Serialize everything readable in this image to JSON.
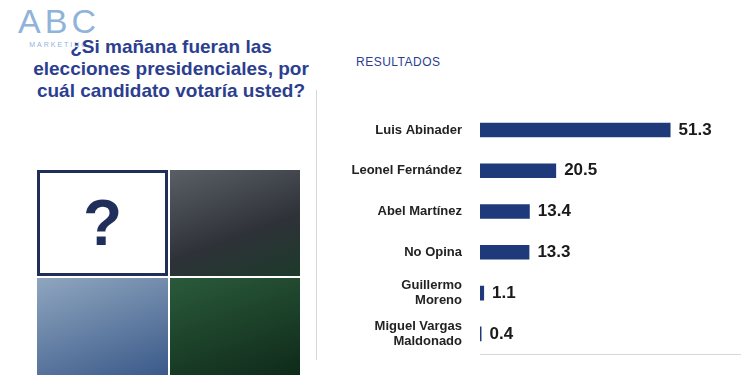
{
  "header": {
    "logo": "ABC",
    "logo_subtitle": "MARKETING"
  },
  "question": "¿Si mañana fueran las elecciones presidenciales, por cuál candidato votaría usted?",
  "placeholder": "?",
  "chart_data": {
    "type": "bar",
    "title": "RESULTADOS",
    "orientation": "horizontal",
    "categories": [
      "Luis Abinader",
      "Leonel Fernández",
      "Abel Martínez",
      "No Opina",
      "Guillermo\nMoreno",
      "Miguel Vargas\nMaldonado"
    ],
    "values": [
      51.3,
      20.5,
      13.4,
      13.3,
      1.1,
      0.4
    ],
    "color": "#1f3a7a",
    "xlim": [
      0,
      70
    ],
    "grid": false,
    "data_labels": true,
    "tick_labels": "y"
  }
}
